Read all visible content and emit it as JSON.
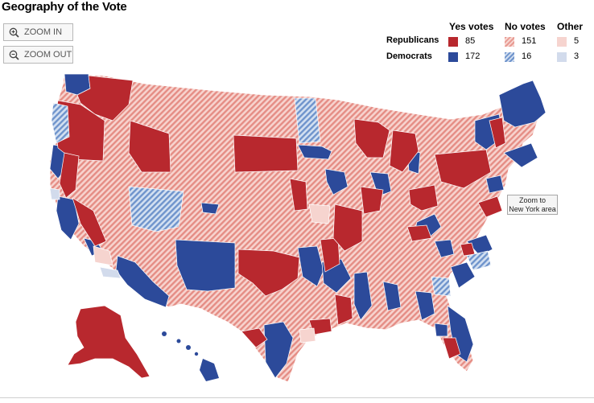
{
  "title": "Geography of the Vote",
  "controls": {
    "zoom_in": "ZOOM IN",
    "zoom_out": "ZOOM OUT",
    "zoom_ny_line1": "Zoom to",
    "zoom_ny_line2": "New York area"
  },
  "legend": {
    "col_yes": "Yes votes",
    "col_no": "No votes",
    "col_other": "Other",
    "rows": [
      {
        "party": "Republicans",
        "yes": "85",
        "no": "151",
        "other": "5"
      },
      {
        "party": "Democrats",
        "yes": "172",
        "no": "16",
        "other": "3"
      }
    ]
  },
  "colors": {
    "rep_yes": "#b8282e",
    "dem_yes": "#2c4a9a",
    "rep_no": "#e89a92",
    "dem_no": "#6f94cc",
    "rep_other": "#f6d4cf",
    "dem_other": "#d2dbec"
  }
}
